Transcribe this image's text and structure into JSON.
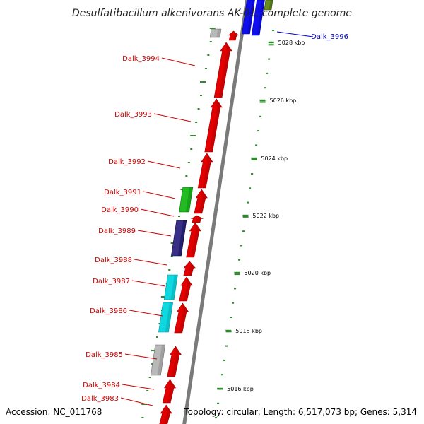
{
  "title": "Desulfatibacillum alkenivorans AK-01, complete genome",
  "accession": "Accession: NC_011768",
  "topology": "Topology: circular; Length: 6,517,073 bp; Genes: 5,314",
  "colors": {
    "red": "#e30000",
    "blue": "#1010ee",
    "green": "#22bb22",
    "navy": "#3a2f86",
    "cyan": "#10d8e0",
    "gray": "#b8b8b8",
    "olive": "#6b8e23",
    "tick": "#2d8a2d",
    "labelRed": "#cc0000",
    "labelBlue": "#0000cc"
  },
  "genes": [
    {
      "name": "Dalk_3996",
      "color": "blue"
    },
    {
      "name": "Dalk_3994",
      "color": "red"
    },
    {
      "name": "Dalk_3993",
      "color": "red"
    },
    {
      "name": "Dalk_3992",
      "color": "red"
    },
    {
      "name": "Dalk_3991",
      "color": "green"
    },
    {
      "name": "Dalk_3990",
      "color": "red"
    },
    {
      "name": "Dalk_3989",
      "color": "navy"
    },
    {
      "name": "Dalk_3988",
      "color": "red"
    },
    {
      "name": "Dalk_3987",
      "color": "cyan"
    },
    {
      "name": "Dalk_3986",
      "color": "cyan"
    },
    {
      "name": "Dalk_3985",
      "color": "gray"
    },
    {
      "name": "Dalk_3984",
      "color": "red"
    },
    {
      "name": "Dalk_3983",
      "color": "red"
    }
  ],
  "scale_labels": [
    "5028 kbp",
    "5026 kbp",
    "5024 kbp",
    "5022 kbp",
    "5020 kbp",
    "5018 kbp",
    "5016 kbp"
  ]
}
